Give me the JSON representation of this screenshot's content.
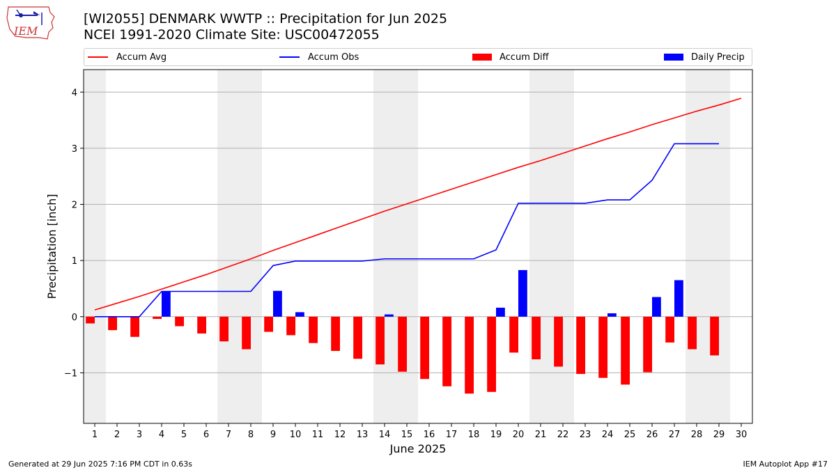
{
  "header": {
    "title_line1": "[WI2055] DENMARK WWTP :: Precipitation for Jun 2025",
    "title_line2": "NCEI 1991-2020 Climate Site: USC00472055",
    "logo_text": "IEM"
  },
  "footer": {
    "left": "Generated at 29 Jun 2025 7:16 PM CDT in 0.63s",
    "right": "IEM Autoplot App #17"
  },
  "colors": {
    "avg": "#ff0000",
    "obs": "#0000ff",
    "diff": "#ff0000",
    "daily": "#0000ff",
    "weekend_shade": "#eeeeee",
    "grid": "#b0b0b0"
  },
  "chart_data": {
    "type": "bar",
    "xlabel": "June 2025",
    "ylabel": "Precipitation [inch]",
    "xlim": [
      0.5,
      30.5
    ],
    "ylim": [
      -1.9,
      4.4
    ],
    "yticks": [
      -1,
      0,
      1,
      2,
      3,
      4
    ],
    "xticks": [
      "1",
      "2",
      "3",
      "4",
      "5",
      "6",
      "7",
      "8",
      "9",
      "10",
      "11",
      "12",
      "13",
      "14",
      "15",
      "16",
      "17",
      "18",
      "19",
      "20",
      "21",
      "22",
      "23",
      "24",
      "25",
      "26",
      "27",
      "28",
      "29",
      "30"
    ],
    "grid": "horizontal",
    "legend_position": "top",
    "shaded_days": [
      [
        1,
        1
      ],
      [
        7,
        8
      ],
      [
        14,
        15
      ],
      [
        21,
        22
      ],
      [
        28,
        29
      ]
    ],
    "series": [
      {
        "name": "Accum Avg",
        "kind": "line",
        "x": [
          1,
          2,
          3,
          4,
          5,
          6,
          7,
          8,
          9,
          10,
          11,
          12,
          13,
          14,
          15,
          16,
          17,
          18,
          19,
          20,
          21,
          22,
          23,
          24,
          25,
          26,
          27,
          28,
          29,
          30
        ],
        "values": [
          0.12,
          0.24,
          0.36,
          0.49,
          0.62,
          0.75,
          0.89,
          1.03,
          1.18,
          1.32,
          1.46,
          1.6,
          1.74,
          1.88,
          2.01,
          2.14,
          2.27,
          2.4,
          2.53,
          2.66,
          2.78,
          2.91,
          3.04,
          3.17,
          3.29,
          3.42,
          3.54,
          3.66,
          3.77,
          3.89
        ]
      },
      {
        "name": "Accum Obs",
        "kind": "line",
        "x": [
          1,
          2,
          3,
          4,
          5,
          6,
          7,
          8,
          9,
          10,
          11,
          12,
          13,
          14,
          15,
          16,
          17,
          18,
          19,
          20,
          21,
          22,
          23,
          24,
          25,
          26,
          27,
          28,
          29
        ],
        "values": [
          0,
          0,
          0,
          0.45,
          0.45,
          0.45,
          0.45,
          0.45,
          0.91,
          0.99,
          0.99,
          0.99,
          0.99,
          1.03,
          1.03,
          1.03,
          1.03,
          1.03,
          1.19,
          2.02,
          2.02,
          2.02,
          2.02,
          2.08,
          2.08,
          2.43,
          3.08,
          3.08,
          3.08
        ]
      },
      {
        "name": "Accum Diff",
        "kind": "bar",
        "offset": -0.2,
        "x": [
          1,
          2,
          3,
          4,
          5,
          6,
          7,
          8,
          9,
          10,
          11,
          12,
          13,
          14,
          15,
          16,
          17,
          18,
          19,
          20,
          21,
          22,
          23,
          24,
          25,
          26,
          27,
          28,
          29
        ],
        "values": [
          -0.12,
          -0.24,
          -0.36,
          -0.04,
          -0.17,
          -0.3,
          -0.44,
          -0.58,
          -0.27,
          -0.33,
          -0.47,
          -0.61,
          -0.75,
          -0.85,
          -0.98,
          -1.11,
          -1.24,
          -1.37,
          -1.34,
          -0.64,
          -0.76,
          -0.89,
          -1.02,
          -1.09,
          -1.21,
          -0.99,
          -0.46,
          -0.58,
          -0.69
        ]
      },
      {
        "name": "Daily Precip",
        "kind": "bar",
        "offset": 0.2,
        "x": [
          4,
          9,
          10,
          14,
          19,
          20,
          24,
          26,
          27
        ],
        "values": [
          0.45,
          0.46,
          0.08,
          0.04,
          0.16,
          0.83,
          0.06,
          0.35,
          0.65
        ]
      }
    ]
  }
}
